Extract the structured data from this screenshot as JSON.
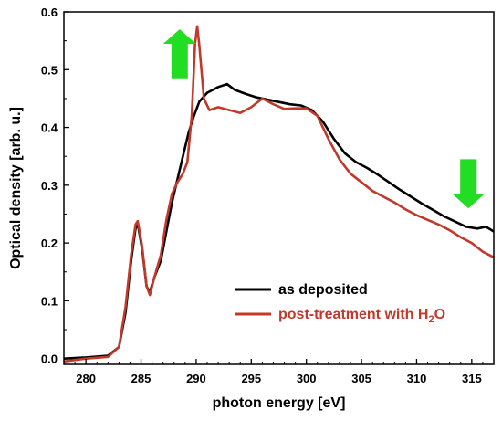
{
  "chart_data": {
    "type": "line",
    "title": "",
    "xlabel": "photon energy [eV]",
    "ylabel": "Optical density [arb. u.]",
    "xlim": [
      278,
      317
    ],
    "ylim": [
      -0.01,
      0.6
    ],
    "x_ticks": [
      280,
      285,
      290,
      295,
      300,
      305,
      310,
      315
    ],
    "y_ticks": [
      0.0,
      0.1,
      0.2,
      0.3,
      0.4,
      0.5,
      0.6
    ],
    "x_tick_labels": [
      "280",
      "285",
      "290",
      "295",
      "300",
      "305",
      "310",
      "315"
    ],
    "y_tick_labels": [
      "0.0",
      "0.1",
      "0.2",
      "0.3",
      "0.4",
      "0.5",
      "0.6"
    ],
    "grid": false,
    "legend_position": "bottom-right",
    "series": [
      {
        "name": "as deposited",
        "color": "#000000",
        "points": [
          [
            278,
            0.0
          ],
          [
            280,
            0.002
          ],
          [
            282,
            0.005
          ],
          [
            283,
            0.02
          ],
          [
            283.6,
            0.08
          ],
          [
            284.1,
            0.17
          ],
          [
            284.5,
            0.225
          ],
          [
            284.7,
            0.233
          ],
          [
            285.1,
            0.19
          ],
          [
            285.5,
            0.125
          ],
          [
            285.8,
            0.115
          ],
          [
            286.2,
            0.14
          ],
          [
            286.8,
            0.17
          ],
          [
            287.3,
            0.22
          ],
          [
            287.8,
            0.27
          ],
          [
            288.3,
            0.31
          ],
          [
            288.8,
            0.35
          ],
          [
            289.3,
            0.39
          ],
          [
            289.8,
            0.42
          ],
          [
            290.3,
            0.445
          ],
          [
            291,
            0.46
          ],
          [
            292,
            0.47
          ],
          [
            292.8,
            0.475
          ],
          [
            293.5,
            0.465
          ],
          [
            294.5,
            0.458
          ],
          [
            295.5,
            0.452
          ],
          [
            296.5,
            0.448
          ],
          [
            297.5,
            0.444
          ],
          [
            298.5,
            0.44
          ],
          [
            299.5,
            0.438
          ],
          [
            300.5,
            0.43
          ],
          [
            301.5,
            0.41
          ],
          [
            302.5,
            0.38
          ],
          [
            303.5,
            0.355
          ],
          [
            304.5,
            0.34
          ],
          [
            305.5,
            0.33
          ],
          [
            306.5,
            0.318
          ],
          [
            307.5,
            0.305
          ],
          [
            308.5,
            0.292
          ],
          [
            309.5,
            0.28
          ],
          [
            310.5,
            0.268
          ],
          [
            311.5,
            0.257
          ],
          [
            312.5,
            0.246
          ],
          [
            313.5,
            0.237
          ],
          [
            314.5,
            0.228
          ],
          [
            315.5,
            0.225
          ],
          [
            316.3,
            0.228
          ],
          [
            317,
            0.22
          ]
        ]
      },
      {
        "name": "post-treatment with H2O",
        "color": "#c0392b",
        "points": [
          [
            278,
            -0.005
          ],
          [
            280,
            0.0
          ],
          [
            282,
            0.003
          ],
          [
            283,
            0.02
          ],
          [
            283.6,
            0.09
          ],
          [
            284.1,
            0.18
          ],
          [
            284.5,
            0.232
          ],
          [
            284.7,
            0.238
          ],
          [
            285.1,
            0.195
          ],
          [
            285.5,
            0.125
          ],
          [
            285.8,
            0.11
          ],
          [
            286.2,
            0.14
          ],
          [
            286.8,
            0.18
          ],
          [
            287.3,
            0.24
          ],
          [
            287.8,
            0.285
          ],
          [
            288.3,
            0.305
          ],
          [
            288.8,
            0.32
          ],
          [
            289.2,
            0.34
          ],
          [
            289.6,
            0.42
          ],
          [
            289.9,
            0.545
          ],
          [
            290.1,
            0.575
          ],
          [
            290.3,
            0.54
          ],
          [
            290.7,
            0.45
          ],
          [
            291.2,
            0.43
          ],
          [
            292,
            0.435
          ],
          [
            293,
            0.43
          ],
          [
            294,
            0.425
          ],
          [
            295,
            0.435
          ],
          [
            296,
            0.45
          ],
          [
            297,
            0.44
          ],
          [
            298,
            0.432
          ],
          [
            299,
            0.433
          ],
          [
            300,
            0.433
          ],
          [
            301,
            0.42
          ],
          [
            302,
            0.38
          ],
          [
            303,
            0.345
          ],
          [
            304,
            0.32
          ],
          [
            305,
            0.305
          ],
          [
            306,
            0.29
          ],
          [
            307,
            0.28
          ],
          [
            308,
            0.27
          ],
          [
            309,
            0.258
          ],
          [
            310,
            0.248
          ],
          [
            311,
            0.24
          ],
          [
            312,
            0.232
          ],
          [
            313,
            0.222
          ],
          [
            314,
            0.21
          ],
          [
            315,
            0.2
          ],
          [
            316,
            0.185
          ],
          [
            317,
            0.175
          ]
        ]
      }
    ],
    "annotations": [
      {
        "type": "arrow",
        "direction": "up",
        "color": "#22dd22",
        "x": 288.5,
        "y_from": 0.485,
        "y_to": 0.57
      },
      {
        "type": "arrow",
        "direction": "down",
        "color": "#22dd22",
        "x": 314.7,
        "y_from": 0.345,
        "y_to": 0.26
      }
    ]
  },
  "legend": {
    "items": [
      {
        "label": "as deposited",
        "color": "#000000",
        "label_main": "as deposited",
        "label_sub": "",
        "label_tail": ""
      },
      {
        "label": "post-treatment with H2O",
        "color": "#c0392b",
        "label_main": "post-treatment with H",
        "label_sub": "2",
        "label_tail": "O"
      }
    ]
  }
}
